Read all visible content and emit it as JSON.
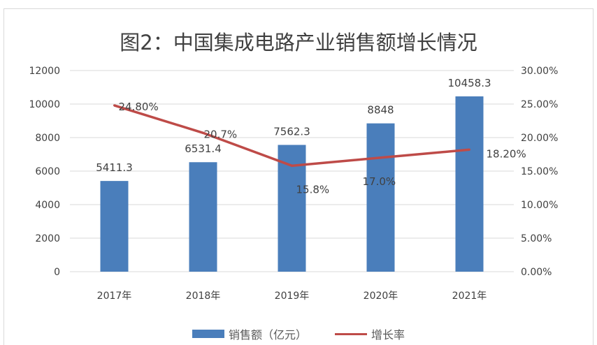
{
  "chart_data": {
    "type": "bar+line",
    "title": "图2：中国集成电路产业销售额增长情况",
    "categories": [
      "2017年",
      "2018年",
      "2019年",
      "2020年",
      "2021年"
    ],
    "series": [
      {
        "name": "销售额（亿元）",
        "type": "bar",
        "axis": "left",
        "values": [
          5411.3,
          6531.4,
          7562.3,
          8848,
          10458.3
        ],
        "labels": [
          "5411.3",
          "6531.4",
          "7562.3",
          "8848",
          "10458.3"
        ],
        "color": "#4a7ebb"
      },
      {
        "name": "增长率",
        "type": "line",
        "axis": "right",
        "values": [
          24.8,
          20.7,
          15.8,
          17.0,
          18.2
        ],
        "labels": [
          "24.80%",
          "20.7%",
          "15.8%",
          "17.0%",
          "18.20%"
        ],
        "color": "#be4b48"
      }
    ],
    "y_left": {
      "range": [
        0,
        12000
      ],
      "ticks": [
        "0",
        "2000",
        "4000",
        "6000",
        "8000",
        "10000",
        "12000"
      ]
    },
    "y_right": {
      "range": [
        0,
        30
      ],
      "ticks": [
        "0.00%",
        "5.00%",
        "10.00%",
        "15.00%",
        "20.00%",
        "25.00%",
        "30.00%"
      ]
    },
    "grid": true,
    "legend": "bottom"
  }
}
